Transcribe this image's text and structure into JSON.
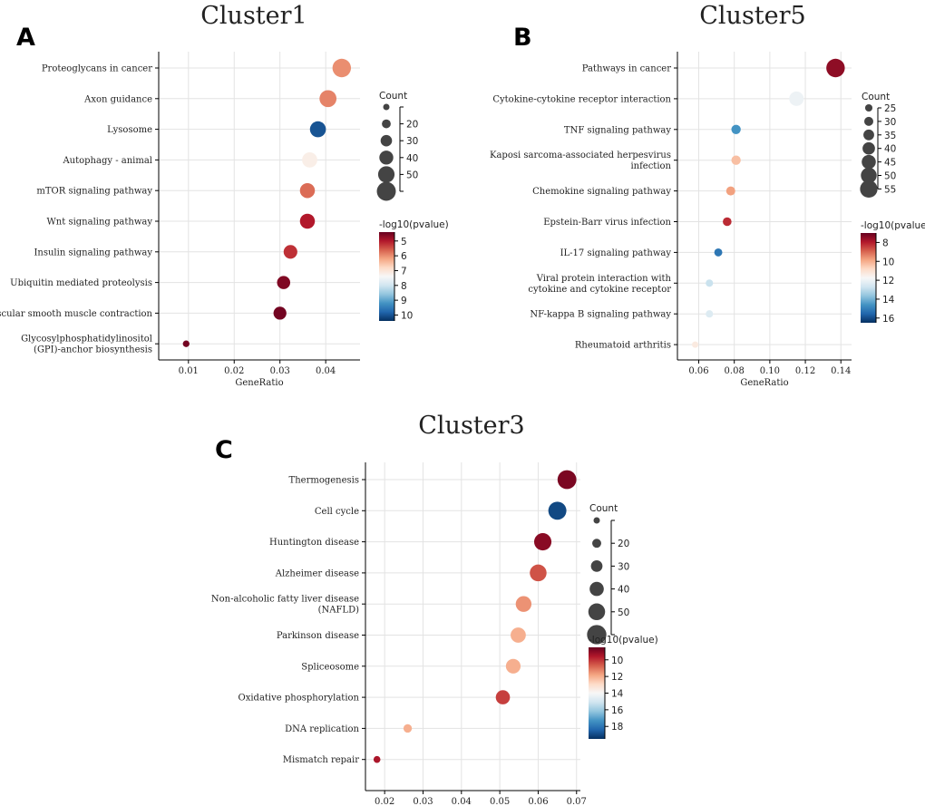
{
  "colors": {
    "scale": [
      "#053061",
      "#2166ac",
      "#4393c3",
      "#92c5de",
      "#d1e5f0",
      "#f7f7f7",
      "#fddbc7",
      "#f4a582",
      "#d6604d",
      "#b2182b",
      "#67001f"
    ],
    "size_legend_dot": "#444444",
    "grid": "#e3e3e3"
  },
  "chart_data": [
    {
      "type": "scatter",
      "panel_label": "A",
      "title": "Cluster1",
      "xlabel": "GeneRatio",
      "xlim": [
        0.0035,
        0.0475
      ],
      "xticks": [
        0.01,
        0.02,
        0.03,
        0.04
      ],
      "xtick_labels": [
        "0.01",
        "0.02",
        "0.03",
        "0.04"
      ],
      "terms": [
        [
          "Proteoglycans in cancer"
        ],
        [
          "Axon guidance"
        ],
        [
          "Lysosome"
        ],
        [
          "Autophagy - animal"
        ],
        [
          "mTOR signaling pathway"
        ],
        [
          "Wnt signaling pathway"
        ],
        [
          "Insulin signaling pathway"
        ],
        [
          "Ubiquitin mediated proteolysis"
        ],
        [
          "Vascular smooth muscle contraction"
        ],
        [
          "Glycosylphosphatidylinositol",
          "(GPI)-anchor biosynthesis"
        ]
      ],
      "gene_ratio": [
        0.0435,
        0.0405,
        0.0383,
        0.0365,
        0.036,
        0.036,
        0.0323,
        0.0308,
        0.03,
        0.0095
      ],
      "count": [
        58,
        52,
        48,
        45,
        44,
        44,
        39,
        37,
        36,
        11
      ],
      "neg_log10_pvalue": [
        6.0,
        5.9,
        10.0,
        7.2,
        5.7,
        5.0,
        5.2,
        4.6,
        4.5,
        4.5
      ],
      "size_legend": {
        "title": "Count",
        "values": [
          10,
          20,
          30,
          40,
          50,
          60
        ],
        "labels": [
          "",
          "20",
          "30",
          "40",
          "50",
          ""
        ]
      },
      "color_legend": {
        "title": "-log10(pvalue)",
        "range": [
          4.4,
          10.4
        ],
        "ticks": [
          5,
          6,
          7,
          8,
          9,
          10
        ],
        "tick_labels": [
          "5",
          "6",
          "7",
          "8",
          "9",
          "10"
        ]
      }
    },
    {
      "type": "scatter",
      "panel_label": "B",
      "title": "Cluster5",
      "xlabel": "GeneRatio",
      "xlim": [
        0.048,
        0.146
      ],
      "xticks": [
        0.06,
        0.08,
        0.1,
        0.12,
        0.14
      ],
      "xtick_labels": [
        "0.06",
        "0.08",
        "0.10",
        "0.12",
        "0.14"
      ],
      "terms": [
        [
          "Pathways in cancer"
        ],
        [
          "Cytokine-cytokine receptor interaction"
        ],
        [
          "TNF signaling pathway"
        ],
        [
          "Kaposi sarcoma-associated herpesvirus",
          "infection"
        ],
        [
          "Chemokine signaling pathway"
        ],
        [
          "Epstein-Barr virus infection"
        ],
        [
          "IL-17 signaling pathway"
        ],
        [
          "Viral protein interaction with",
          "cytokine and cytokine receptor"
        ],
        [
          "NF-kappa B signaling pathway"
        ],
        [
          "Rheumatoid arthritis"
        ]
      ],
      "gene_ratio": [
        0.137,
        0.115,
        0.081,
        0.081,
        0.078,
        0.076,
        0.071,
        0.066,
        0.066,
        0.058
      ],
      "count": [
        58,
        46,
        31,
        31,
        30,
        29,
        27,
        25,
        25,
        22
      ],
      "neg_log10_pvalue": [
        7.5,
        12.0,
        14.6,
        10.3,
        9.8,
        8.2,
        15.2,
        12.8,
        12.4,
        11.3
      ],
      "size_legend": {
        "title": "Count",
        "values": [
          25,
          30,
          35,
          40,
          45,
          50,
          55
        ],
        "labels": [
          "25",
          "30",
          "35",
          "40",
          "45",
          "50",
          "55"
        ]
      },
      "color_legend": {
        "title": "-log10(pvalue)",
        "range": [
          7.0,
          16.5
        ],
        "ticks": [
          8,
          10,
          12,
          14,
          16
        ],
        "tick_labels": [
          "8",
          "10",
          "12",
          "14",
          "16"
        ]
      }
    },
    {
      "type": "scatter",
      "panel_label": "C",
      "title": "Cluster3",
      "xlabel": "GeneRatio",
      "xlim": [
        0.015,
        0.071
      ],
      "xticks": [
        0.02,
        0.03,
        0.04,
        0.05,
        0.06,
        0.07
      ],
      "xtick_labels": [
        "0.02",
        "0.03",
        "0.04",
        "0.05",
        "0.06",
        "0.07"
      ],
      "terms": [
        [
          "Thermogenesis"
        ],
        [
          "Cell cycle"
        ],
        [
          "Huntington disease"
        ],
        [
          "Alzheimer disease"
        ],
        [
          "Non-alcoholic fatty liver disease",
          "(NAFLD)"
        ],
        [
          "Parkinson disease"
        ],
        [
          "Spliceosome"
        ],
        [
          "Oxidative phosphorylation"
        ],
        [
          "DNA replication"
        ],
        [
          "Mismatch repair"
        ]
      ],
      "gene_ratio": [
        0.0675,
        0.065,
        0.0612,
        0.06,
        0.0562,
        0.0548,
        0.0535,
        0.0508,
        0.026,
        0.018
      ],
      "count": [
        58,
        55,
        52,
        50,
        46,
        44,
        42,
        40,
        18,
        12
      ],
      "neg_log10_pvalue": [
        8.8,
        19.0,
        9.0,
        10.5,
        11.5,
        12.0,
        12.0,
        10.2,
        12.0,
        9.5
      ],
      "size_legend": {
        "title": "Count",
        "values": [
          10,
          20,
          30,
          40,
          50,
          60
        ],
        "labels": [
          "",
          "20",
          "30",
          "40",
          "50",
          ""
        ]
      },
      "color_legend": {
        "title": "-log10(pvalue)",
        "range": [
          8.5,
          19.5
        ],
        "ticks": [
          10,
          12,
          14,
          16,
          18
        ],
        "tick_labels": [
          "10",
          "12",
          "14",
          "16",
          "18"
        ]
      }
    }
  ]
}
